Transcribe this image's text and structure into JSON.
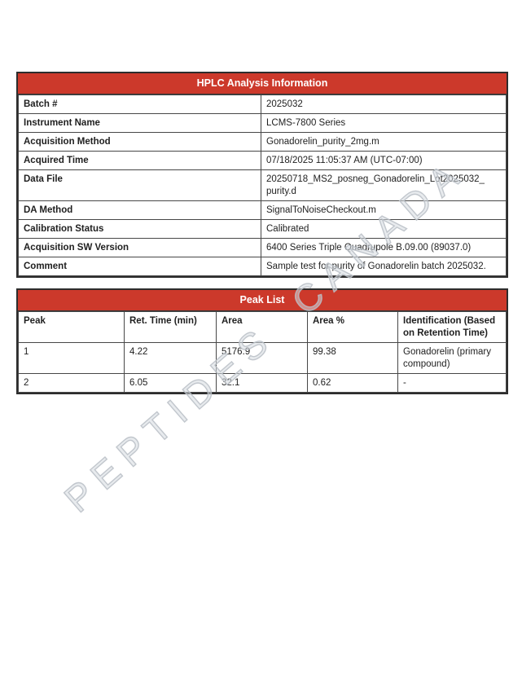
{
  "colors": {
    "header_red": "#cc392b",
    "header_text": "#ffffff",
    "border_dark": "#2d2d2d",
    "border_inner": "#474747",
    "watermark_gray": "#c8cdd3"
  },
  "info_table": {
    "title": "HPLC Analysis Information",
    "rows": [
      {
        "label": "Batch #",
        "value": "2025032"
      },
      {
        "label": "Instrument Name",
        "value": "LCMS-7800 Series"
      },
      {
        "label": "Acquisition Method",
        "value": "Gonadorelin_purity_2mg.m"
      },
      {
        "label": "Acquired Time",
        "value": "07/18/2025 11:05:37 AM (UTC-07:00)"
      },
      {
        "label": "Data File",
        "value": "20250718_MS2_posneg_Gonadorelin_Lot2025032_​purity.d"
      },
      {
        "label": "DA Method",
        "value": "SignalToNoiseCheckout.m"
      },
      {
        "label": "Calibration Status",
        "value": "Calibrated"
      },
      {
        "label": "Acquisition SW Version",
        "value": "6400 Series Triple Quadrupole B.09.00 (89037.0)"
      },
      {
        "label": "Comment",
        "value": "Sample test for purity of Gonadorelin batch 2025032."
      }
    ]
  },
  "peak_table": {
    "title": "Peak List",
    "columns": [
      "Peak",
      "Ret. Time (min)",
      "Area",
      "Area %",
      "Identification (Based on Retention Time)"
    ],
    "rows": [
      [
        "1",
        "4.22",
        "5176.9",
        "99.38",
        "Gonadorelin (primary compound)"
      ],
      [
        "2",
        "6.05",
        "32.1",
        "0.62",
        "-"
      ]
    ]
  },
  "watermark": {
    "text": "PEPTIDES CANADA"
  }
}
